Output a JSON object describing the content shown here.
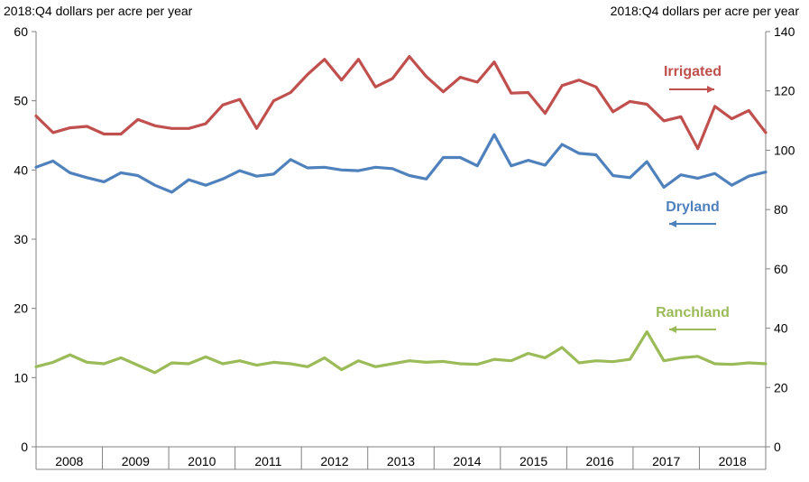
{
  "chart_data": {
    "type": "line",
    "title": "",
    "left_axis": {
      "label": "2018:Q4 dollars per acre per year",
      "range": [
        0,
        60
      ],
      "ticks": [
        "0",
        "10",
        "20",
        "30",
        "40",
        "50",
        "60"
      ]
    },
    "right_axis": {
      "label": "2018:Q4 dollars per acre per year",
      "range": [
        0,
        140
      ],
      "ticks": [
        "0",
        "20",
        "40",
        "60",
        "80",
        "100",
        "120",
        "140"
      ]
    },
    "year_labels": [
      "2008",
      "2009",
      "2010",
      "2011",
      "2012",
      "2013",
      "2014",
      "2015",
      "2016",
      "2017",
      "2018"
    ],
    "start": "2007:Q4",
    "series": [
      {
        "name": "Irrigated",
        "label": "Irrigated",
        "axis": "left",
        "color": "#c0504d",
        "legend_arrow": "right",
        "values": [
          47.8,
          45.4,
          46.1,
          46.3,
          45.2,
          45.2,
          47.3,
          46.4,
          46.0,
          46.0,
          46.7,
          49.4,
          50.2,
          46.0,
          50.0,
          51.2,
          53.8,
          56.0,
          53.0,
          56.0,
          52.0,
          53.2,
          56.4,
          53.5,
          51.3,
          53.4,
          52.7,
          55.6,
          51.1,
          51.2,
          48.2,
          52.2,
          53.0,
          52.0,
          48.4,
          49.9,
          49.5,
          47.1,
          47.7,
          43.1,
          49.2,
          47.4,
          48.6,
          45.4
        ]
      },
      {
        "name": "Dryland",
        "label": "Dryland",
        "axis": "left",
        "color": "#4f81bd",
        "legend_arrow": "left",
        "values": [
          40.4,
          41.3,
          39.6,
          38.9,
          38.3,
          39.6,
          39.2,
          37.8,
          36.8,
          38.6,
          37.8,
          38.7,
          39.9,
          39.1,
          39.4,
          41.5,
          40.3,
          40.4,
          40.0,
          39.9,
          40.4,
          40.2,
          39.2,
          38.7,
          41.8,
          41.8,
          40.6,
          45.1,
          40.6,
          41.4,
          40.7,
          43.7,
          42.4,
          42.2,
          39.2,
          38.9,
          41.2,
          37.5,
          39.3,
          38.8,
          39.5,
          37.8,
          39.1,
          39.7
        ]
      },
      {
        "name": "Ranchland",
        "label": "Ranchland",
        "axis": "right",
        "color": "#9bbb59",
        "legend_arrow": "left",
        "values": [
          27.0,
          28.5,
          31.0,
          28.5,
          28.0,
          30.0,
          27.5,
          25.0,
          28.3,
          28.0,
          30.3,
          28.0,
          29.0,
          27.5,
          28.5,
          28.0,
          27.0,
          30.0,
          26.0,
          29.0,
          27.0,
          28.0,
          29.0,
          28.5,
          28.8,
          28.0,
          27.8,
          29.5,
          29.0,
          31.5,
          30.0,
          33.5,
          28.3,
          29.0,
          28.7,
          29.5,
          38.8,
          29.0,
          30.0,
          30.5,
          28.0,
          27.8,
          28.3,
          28.0
        ]
      }
    ]
  }
}
